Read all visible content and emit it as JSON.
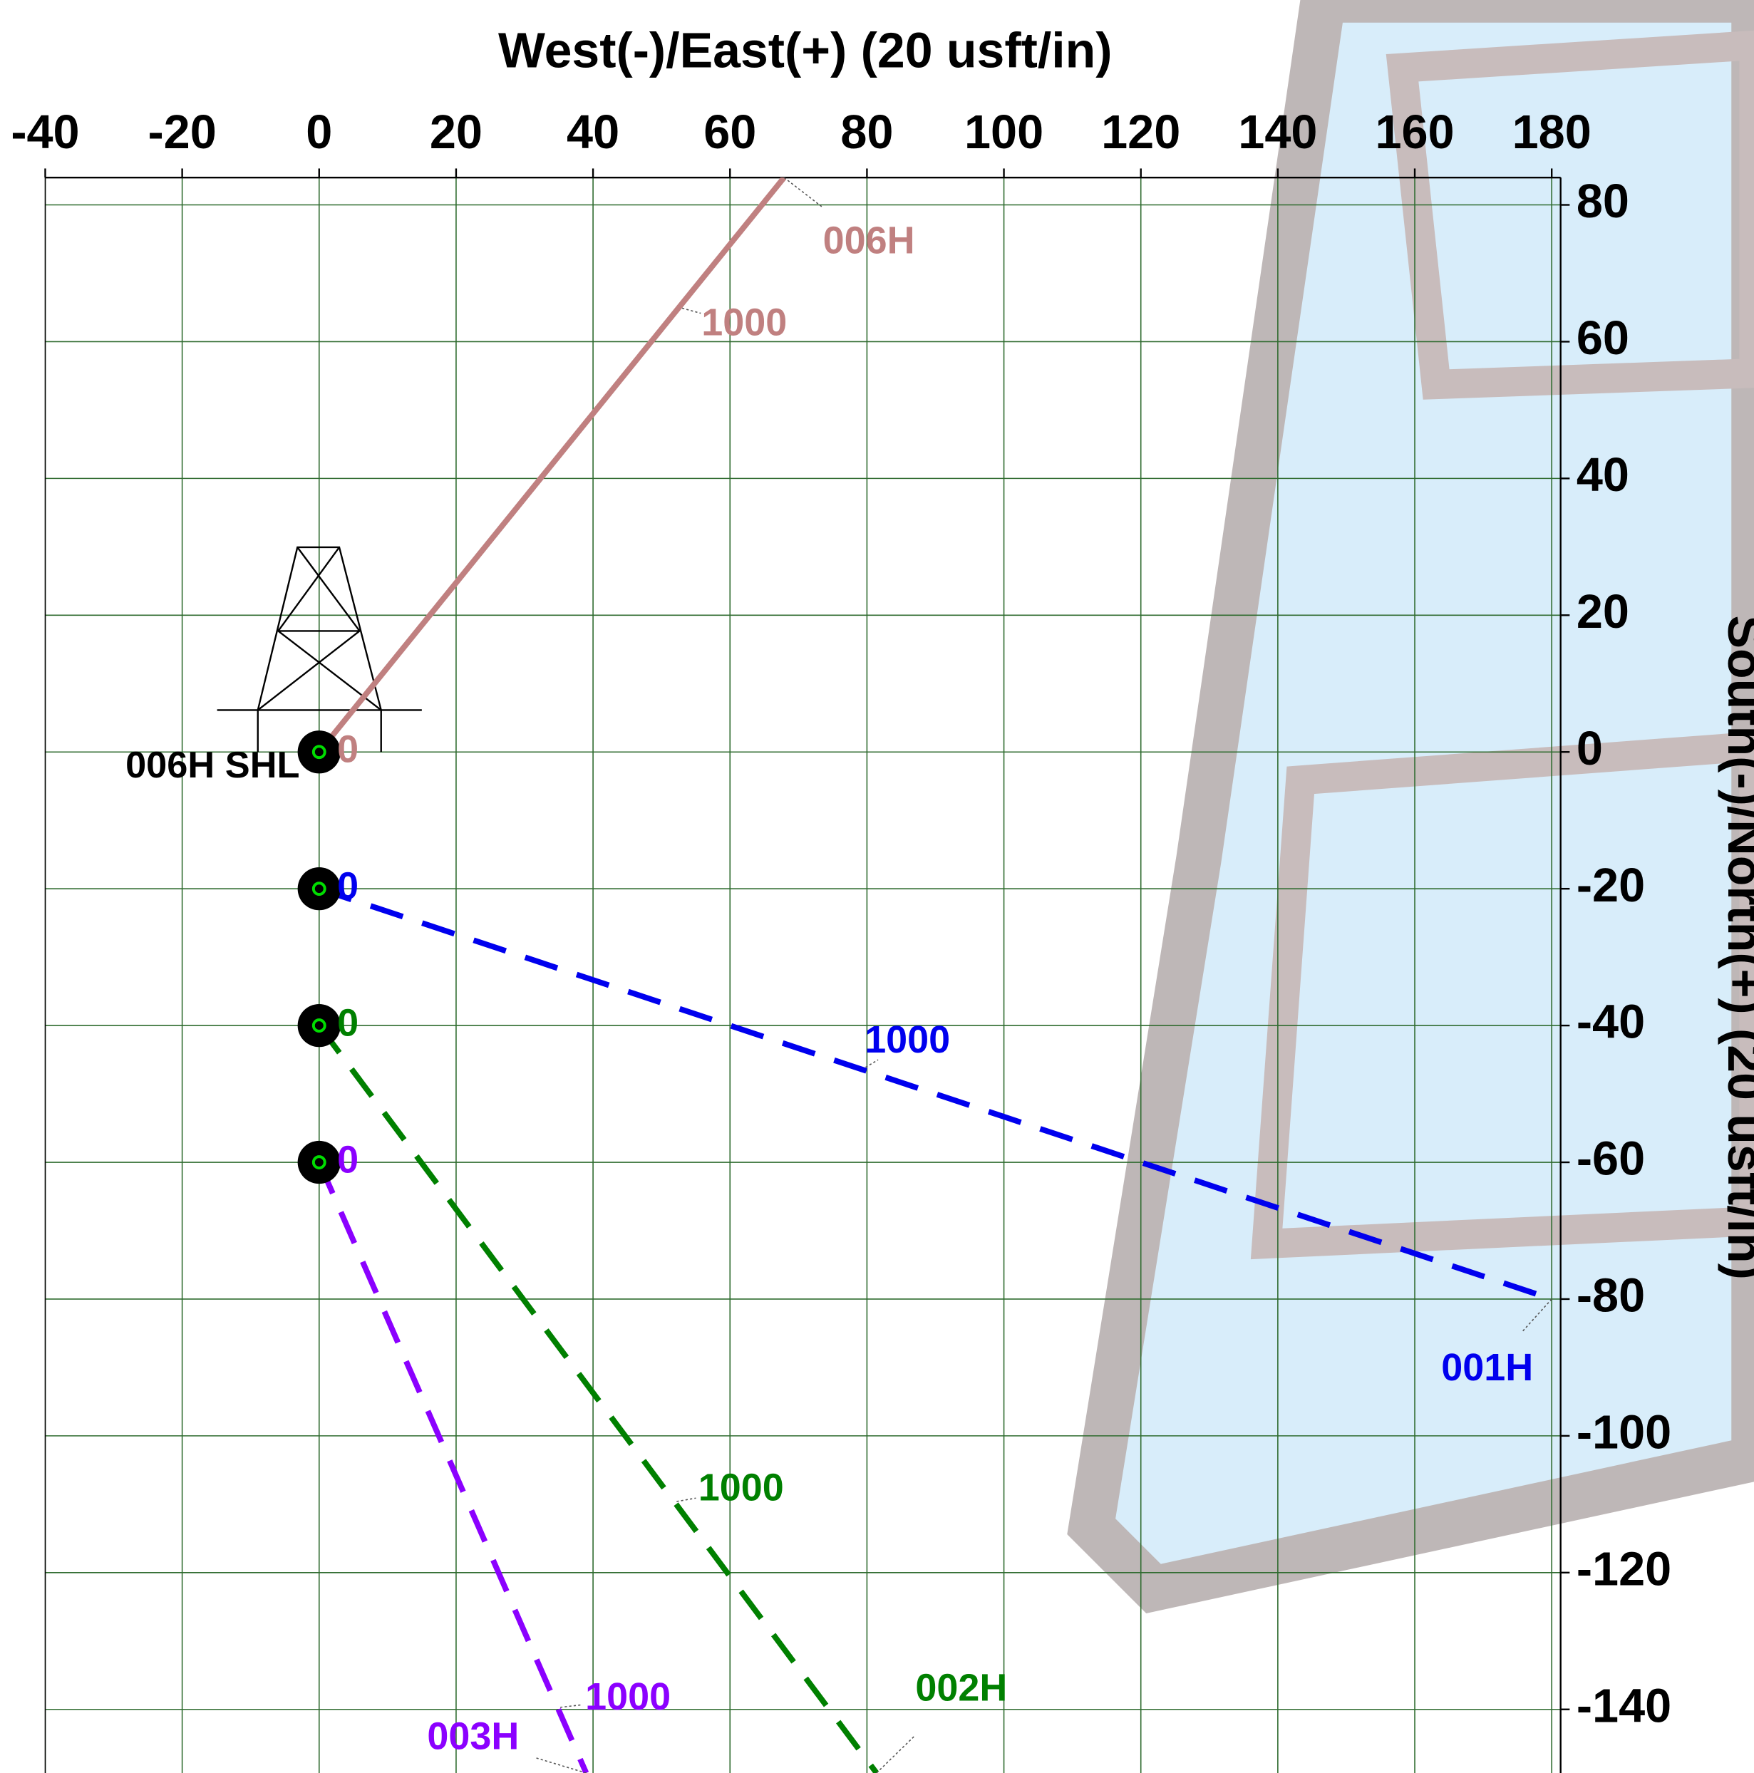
{
  "chart_data": {
    "type": "line",
    "title": "West(-)/East(+) (20 usft/in)",
    "y_label": "South(-)/North(+) (20 usft/in)",
    "surface_label": "006H SHL",
    "xlim": [
      -40,
      181.3
    ],
    "ylim": [
      -149.3,
      84
    ],
    "xticks": [
      -40,
      -20,
      0,
      20,
      40,
      60,
      80,
      100,
      120,
      140,
      160,
      180
    ],
    "yticks": [
      80,
      60,
      40,
      20,
      0,
      -20,
      -40,
      -60,
      -80,
      -100,
      -120,
      -140
    ],
    "grid": true,
    "series": [
      {
        "name": "006H",
        "color": "#c08080",
        "dashed": false,
        "x": [
          0,
          67.9
        ],
        "values": [
          0,
          84
        ],
        "markers": [
          {
            "md": 0,
            "x": 0,
            "y": 0
          },
          {
            "md": 1000,
            "x": 53,
            "y": 64.9
          }
        ]
      },
      {
        "name": "001H",
        "color": "#0000ee",
        "dashed": true,
        "x": [
          0,
          180
        ],
        "values": [
          -20,
          -80
        ],
        "markers": [
          {
            "md": 0,
            "x": 0,
            "y": -20
          },
          {
            "md": 1000,
            "x": 79.8,
            "y": -46.1
          }
        ]
      },
      {
        "name": "002H",
        "color": "#008000",
        "dashed": true,
        "x": [
          0,
          81.4
        ],
        "values": [
          -40,
          -149.3
        ],
        "markers": [
          {
            "md": 0,
            "x": 0,
            "y": -40
          },
          {
            "md": 1000,
            "x": 52.2,
            "y": -109.6
          }
        ]
      },
      {
        "name": "003H",
        "color": "#8b00ff",
        "dashed": true,
        "x": [
          0,
          39
        ],
        "values": [
          -60,
          -149.3
        ],
        "markers": [
          {
            "md": 0,
            "x": 0,
            "y": -60
          },
          {
            "md": 1000,
            "x": 35.2,
            "y": -139.7
          }
        ]
      }
    ]
  }
}
